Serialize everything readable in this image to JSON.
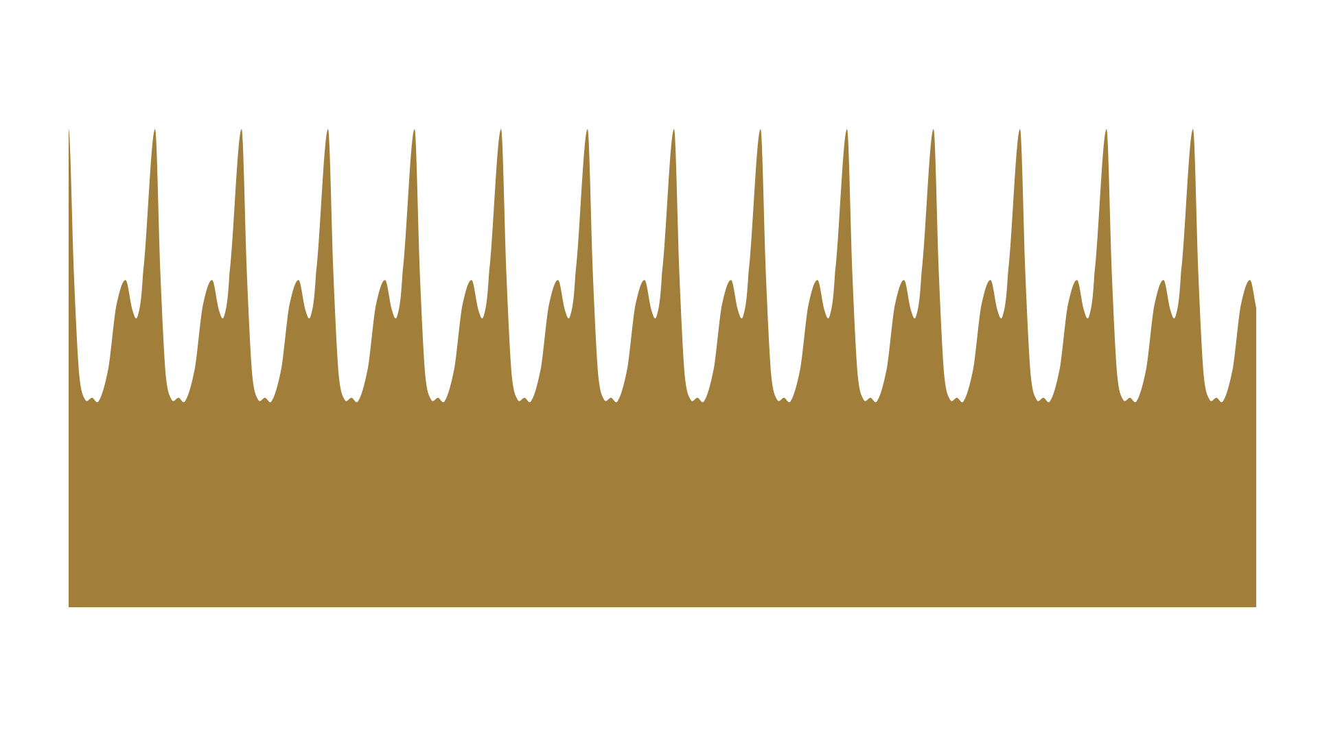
{
  "chart_data": {
    "type": "area",
    "title": "",
    "xlabel": "",
    "ylabel": "",
    "xlim": [
      0,
      13.73
    ],
    "ylim": [
      0,
      1
    ],
    "grid": false,
    "axes_visible": false,
    "fill_color": "#A17E3A",
    "period": 1,
    "cycles": 13.73,
    "profile_keypoints": [
      {
        "x": 0.0,
        "y": 1.0
      },
      {
        "x": 0.06,
        "y": 0.7
      },
      {
        "x": 0.12,
        "y": 0.49
      },
      {
        "x": 0.19,
        "y": 0.434
      },
      {
        "x": 0.27,
        "y": 0.438
      },
      {
        "x": 0.35,
        "y": 0.432
      },
      {
        "x": 0.46,
        "y": 0.5
      },
      {
        "x": 0.55,
        "y": 0.63
      },
      {
        "x": 0.66,
        "y": 0.684
      },
      {
        "x": 0.74,
        "y": 0.62
      },
      {
        "x": 0.8,
        "y": 0.61
      },
      {
        "x": 0.86,
        "y": 0.7
      },
      {
        "x": 1.0,
        "y": 1.0
      }
    ]
  }
}
